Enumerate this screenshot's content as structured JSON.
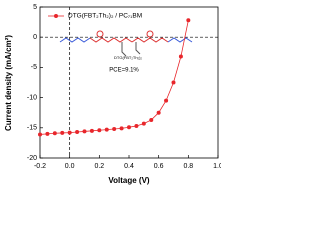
{
  "chart_data": {
    "type": "line",
    "xlabel": "Voltage (V)",
    "ylabel": "Current density (mA/cm²)",
    "x": [
      -0.2,
      -0.15,
      -0.1,
      -0.05,
      0,
      0.05,
      0.1,
      0.15,
      0.2,
      0.25,
      0.3,
      0.35,
      0.4,
      0.45,
      0.5,
      0.55,
      0.6,
      0.65,
      0.7,
      0.75,
      0.8
    ],
    "series": [
      {
        "name": "DTG(FBT₂Th₂)₂ / PC₇₁BM",
        "color": "#e8262b",
        "values": [
          -16.1,
          -16.0,
          -15.9,
          -15.85,
          -15.8,
          -15.7,
          -15.6,
          -15.5,
          -15.4,
          -15.3,
          -15.2,
          -15.1,
          -14.9,
          -14.7,
          -14.3,
          -13.7,
          -12.5,
          -10.5,
          -7.5,
          -3.2,
          2.8
        ]
      }
    ],
    "xlim": [
      -0.2,
      1.0
    ],
    "xticks": [
      -0.2,
      {
        "value": 0,
        "label": "0.0"
      },
      0.2,
      0.4,
      0.6,
      0.8,
      {
        "value": 1,
        "label": "1.0"
      }
    ],
    "ylim": [
      -20,
      5
    ],
    "yticks": [
      -20,
      -15,
      -10,
      -5,
      0,
      5
    ],
    "hlines": [
      0
    ],
    "vlines": [
      0
    ],
    "annotations": [
      "DTG(FBT₂Th₂)₂",
      "PCE=9.1%"
    ],
    "legend": "upper left"
  }
}
